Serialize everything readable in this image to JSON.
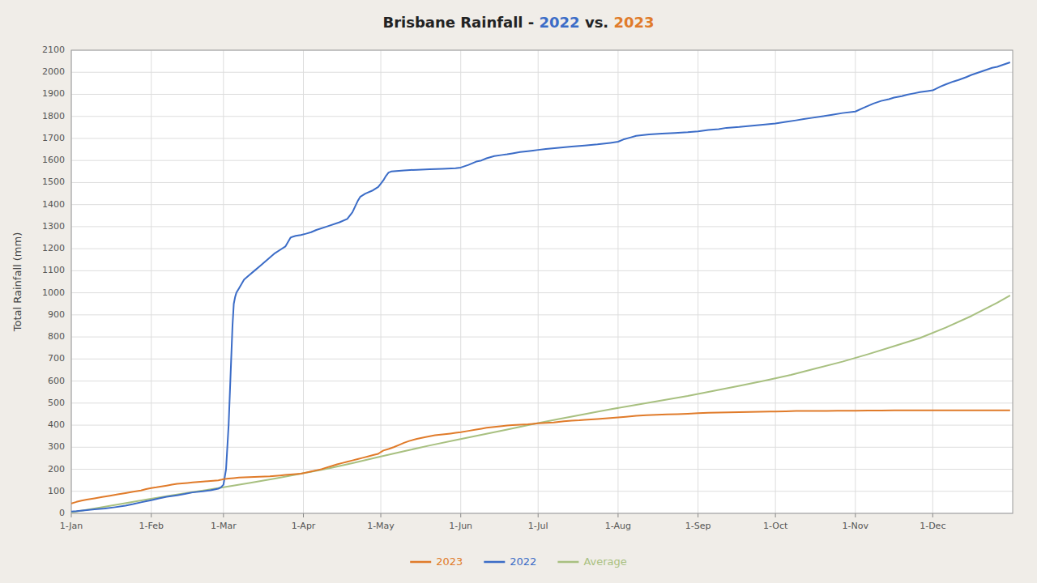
{
  "chart_data": {
    "type": "line",
    "title": "Brisbane Rainfall - 2022 vs. 2023",
    "ylabel": "Total Rainfall (mm)",
    "xlim": [
      1,
      366
    ],
    "xticks": [
      {
        "value": 1,
        "label": "1-Jan"
      },
      {
        "value": 32,
        "label": "1-Feb"
      },
      {
        "value": 60,
        "label": "1-Mar"
      },
      {
        "value": 91,
        "label": "1-Apr"
      },
      {
        "value": 121,
        "label": "1-May"
      },
      {
        "value": 152,
        "label": "1-Jun"
      },
      {
        "value": 182,
        "label": "1-Jul"
      },
      {
        "value": 213,
        "label": "1-Aug"
      },
      {
        "value": 244,
        "label": "1-Sep"
      },
      {
        "value": 274,
        "label": "1-Oct"
      },
      {
        "value": 305,
        "label": "1-Nov"
      },
      {
        "value": 335,
        "label": "1-Dec"
      }
    ],
    "ylim": [
      0,
      2100
    ],
    "yticks": [
      0,
      100,
      200,
      300,
      400,
      500,
      600,
      700,
      800,
      900,
      1000,
      1100,
      1200,
      1300,
      1400,
      1500,
      1600,
      1700,
      1800,
      1900,
      2000,
      2100
    ],
    "grid": true,
    "legend": "bottom",
    "series": [
      {
        "name": "2023",
        "color": "#E07B2A",
        "x": [
          1,
          3,
          5,
          7,
          10,
          13,
          16,
          19,
          22,
          25,
          28,
          30,
          32,
          34,
          36,
          38,
          40,
          42,
          44,
          46,
          48,
          50,
          52,
          54,
          56,
          58,
          59,
          60,
          62,
          64,
          66,
          68,
          70,
          72,
          74,
          76,
          78,
          80,
          82,
          84,
          86,
          88,
          90,
          92,
          94,
          96,
          98,
          100,
          102,
          104,
          106,
          108,
          110,
          112,
          114,
          116,
          118,
          120,
          121,
          122,
          124,
          126,
          128,
          130,
          132,
          135,
          138,
          140,
          142,
          145,
          148,
          150,
          152,
          155,
          158,
          160,
          162,
          165,
          168,
          170,
          172,
          175,
          178,
          180,
          182,
          185,
          188,
          190,
          192,
          195,
          198,
          200,
          205,
          210,
          213,
          216,
          220,
          224,
          228,
          232,
          236,
          240,
          244,
          248,
          252,
          256,
          260,
          264,
          268,
          272,
          274,
          278,
          282,
          286,
          290,
          294,
          298,
          302,
          305,
          310,
          315,
          320,
          325,
          330,
          335,
          340,
          345,
          350,
          355,
          360,
          365
        ],
        "values": [
          45,
          52,
          58,
          62,
          68,
          74,
          80,
          86,
          92,
          98,
          104,
          110,
          115,
          118,
          122,
          126,
          130,
          134,
          136,
          138,
          140,
          142,
          144,
          146,
          148,
          150,
          152,
          155,
          158,
          160,
          162,
          163,
          164,
          165,
          166,
          167,
          168,
          170,
          172,
          174,
          176,
          178,
          180,
          185,
          190,
          195,
          200,
          208,
          215,
          222,
          228,
          234,
          240,
          246,
          252,
          258,
          264,
          270,
          278,
          285,
          292,
          300,
          310,
          320,
          328,
          338,
          345,
          350,
          354,
          358,
          362,
          365,
          368,
          374,
          380,
          384,
          388,
          392,
          396,
          398,
          400,
          402,
          404,
          406,
          408,
          410,
          412,
          415,
          418,
          420,
          422,
          424,
          428,
          432,
          435,
          438,
          442,
          445,
          447,
          449,
          450,
          452,
          454,
          456,
          457,
          458,
          459,
          460,
          461,
          462,
          462,
          463,
          464,
          464,
          464,
          464,
          465,
          465,
          465,
          466,
          466,
          467,
          467,
          467,
          467,
          467,
          467,
          467,
          467,
          467,
          467
        ]
      },
      {
        "name": "2022",
        "color": "#3B6CC7",
        "x": [
          1,
          3,
          7,
          10,
          14,
          18,
          22,
          25,
          28,
          30,
          32,
          35,
          38,
          42,
          45,
          48,
          52,
          55,
          58,
          59,
          60,
          61,
          62,
          63,
          63.5,
          64,
          64.5,
          65,
          66,
          67,
          68,
          70,
          72,
          74,
          76,
          78,
          80,
          82,
          84,
          85,
          86,
          87,
          88,
          90,
          92,
          94,
          96,
          100,
          105,
          108,
          110,
          111,
          112,
          113,
          115,
          118,
          120,
          121,
          122,
          123,
          124,
          125,
          130,
          135,
          140,
          145,
          150,
          152,
          155,
          158,
          160,
          162,
          165,
          168,
          170,
          172,
          175,
          178,
          180,
          182,
          185,
          190,
          195,
          200,
          205,
          210,
          213,
          215,
          218,
          220,
          225,
          230,
          235,
          240,
          244,
          248,
          252,
          255,
          260,
          265,
          270,
          274,
          278,
          282,
          285,
          288,
          292,
          296,
          300,
          305,
          308,
          310,
          312,
          315,
          318,
          320,
          323,
          325,
          328,
          330,
          333,
          335,
          338,
          340,
          343,
          345,
          348,
          350,
          353,
          356,
          358,
          360,
          362,
          365
        ],
        "values": [
          8,
          10,
          15,
          18,
          22,
          28,
          35,
          42,
          50,
          55,
          60,
          68,
          75,
          82,
          88,
          95,
          100,
          105,
          112,
          118,
          130,
          200,
          400,
          700,
          850,
          950,
          980,
          1000,
          1020,
          1040,
          1060,
          1080,
          1100,
          1120,
          1140,
          1160,
          1180,
          1195,
          1210,
          1230,
          1250,
          1255,
          1258,
          1262,
          1268,
          1275,
          1285,
          1300,
          1320,
          1335,
          1365,
          1390,
          1415,
          1435,
          1450,
          1465,
          1480,
          1495,
          1510,
          1530,
          1545,
          1550,
          1555,
          1558,
          1560,
          1562,
          1565,
          1568,
          1580,
          1595,
          1600,
          1610,
          1620,
          1625,
          1628,
          1632,
          1638,
          1642,
          1645,
          1648,
          1652,
          1658,
          1663,
          1668,
          1673,
          1680,
          1685,
          1695,
          1705,
          1712,
          1718,
          1722,
          1725,
          1728,
          1732,
          1738,
          1742,
          1748,
          1752,
          1758,
          1763,
          1768,
          1775,
          1782,
          1788,
          1793,
          1800,
          1807,
          1815,
          1822,
          1838,
          1848,
          1858,
          1870,
          1878,
          1885,
          1892,
          1898,
          1905,
          1910,
          1915,
          1918,
          1935,
          1945,
          1958,
          1965,
          1978,
          1988,
          2000,
          2012,
          2020,
          2025,
          2033,
          2045
        ]
      },
      {
        "name": "Average",
        "color": "#a8c080",
        "x": [
          1,
          10,
          20,
          30,
          40,
          50,
          60,
          70,
          80,
          90,
          100,
          110,
          120,
          130,
          140,
          150,
          160,
          170,
          180,
          190,
          200,
          210,
          220,
          230,
          240,
          250,
          260,
          270,
          280,
          290,
          300,
          310,
          320,
          330,
          340,
          350,
          360,
          365
        ],
        "values": [
          5,
          22,
          42,
          62,
          82,
          100,
          118,
          138,
          158,
          180,
          202,
          228,
          255,
          282,
          308,
          332,
          356,
          380,
          405,
          428,
          450,
          472,
          492,
          512,
          532,
          555,
          578,
          602,
          628,
          658,
          688,
          722,
          758,
          795,
          842,
          895,
          955,
          988
        ]
      }
    ]
  }
}
